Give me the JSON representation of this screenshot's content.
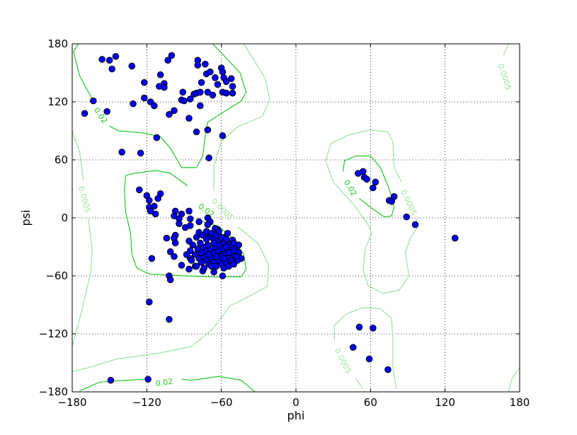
{
  "chart_data": {
    "type": "scatter",
    "title": "",
    "xlabel": "phi",
    "ylabel": "psi",
    "xlim": [
      -180,
      180
    ],
    "ylim": [
      -180,
      180
    ],
    "xticks": [
      "−180",
      "−120",
      "−60",
      "0",
      "60",
      "120",
      "180"
    ],
    "yticks": [
      "−180",
      "−120",
      "−60",
      "0",
      "60",
      "120",
      "180"
    ],
    "xtick_values": [
      -180,
      -120,
      -60,
      0,
      60,
      120,
      180
    ],
    "ytick_values": [
      -180,
      -120,
      -60,
      0,
      60,
      120,
      180
    ],
    "grid": true,
    "grid_style": "dotted",
    "colors": {
      "points": "#0000ff",
      "point_edge": "#000000",
      "contour_high": "#22c722",
      "contour_low": "#9be39b"
    },
    "points": [
      [
        -156,
        164
      ],
      [
        -150,
        163
      ],
      [
        -145,
        167
      ],
      [
        -148,
        154
      ],
      [
        -132,
        157
      ],
      [
        -122,
        140
      ],
      [
        -109,
        148
      ],
      [
        -103,
        163
      ],
      [
        -100,
        168
      ],
      [
        -110,
        136
      ],
      [
        -106,
        139
      ],
      [
        -106,
        135
      ],
      [
        -122,
        124
      ],
      [
        -163,
        121
      ],
      [
        -170,
        108
      ],
      [
        -152,
        110
      ],
      [
        -131,
        118
      ],
      [
        -117,
        120
      ],
      [
        -114,
        116
      ],
      [
        -102,
        107
      ],
      [
        -98,
        111
      ],
      [
        -86,
        103
      ],
      [
        -112,
        83
      ],
      [
        -140,
        68
      ],
      [
        -125,
        67
      ],
      [
        -80,
        89
      ],
      [
        -71,
        91
      ],
      [
        -70,
        62
      ],
      [
        -59,
        85
      ],
      [
        -79,
        163
      ],
      [
        -79,
        158
      ],
      [
        -73,
        159
      ],
      [
        -77,
        116
      ],
      [
        -91,
        130
      ],
      [
        -92,
        122
      ],
      [
        -90,
        121
      ],
      [
        -85,
        123
      ],
      [
        -82,
        128
      ],
      [
        -80,
        129
      ],
      [
        -77,
        130
      ],
      [
        -76,
        140
      ],
      [
        -72,
        149
      ],
      [
        -69,
        151
      ],
      [
        -65,
        145
      ],
      [
        -63,
        138
      ],
      [
        -71,
        130
      ],
      [
        -67,
        127
      ],
      [
        -60,
        155
      ],
      [
        -59,
        151
      ],
      [
        -58,
        145
      ],
      [
        -56,
        141
      ],
      [
        -52,
        144
      ],
      [
        -51,
        136
      ],
      [
        -59,
        130
      ],
      [
        -56,
        129
      ],
      [
        -51,
        129
      ],
      [
        -126,
        29
      ],
      [
        -120,
        23
      ],
      [
        -109,
        25
      ],
      [
        -111,
        20
      ],
      [
        -118,
        18
      ],
      [
        -114,
        12
      ],
      [
        -118,
        11
      ],
      [
        -117,
        7
      ],
      [
        -113,
        4
      ],
      [
        -97,
        7
      ],
      [
        -98,
        2
      ],
      [
        -92,
        4
      ],
      [
        -86,
        7
      ],
      [
        -94,
        -1
      ],
      [
        -94,
        -6
      ],
      [
        -89,
        -10
      ],
      [
        -85,
        -8
      ],
      [
        -85,
        -1
      ],
      [
        -78,
        -4
      ],
      [
        -71,
        0
      ],
      [
        -69,
        -4
      ],
      [
        -71,
        -7
      ],
      [
        -104,
        -21
      ],
      [
        -97,
        -18
      ],
      [
        -98,
        -21
      ],
      [
        -97,
        -26
      ],
      [
        -101,
        -35
      ],
      [
        -98,
        -40
      ],
      [
        -116,
        -42
      ],
      [
        -92,
        -49
      ],
      [
        -85,
        -42
      ],
      [
        -86,
        -53
      ],
      [
        -81,
        -50
      ],
      [
        -102,
        -60
      ],
      [
        -101,
        -64
      ],
      [
        -59,
        -60
      ],
      [
        -75,
        -55
      ],
      [
        -57,
        -20
      ],
      [
        -51,
        -23
      ],
      [
        -65,
        -11
      ],
      [
        -63,
        -12
      ],
      [
        -78,
        -15
      ],
      [
        -75,
        -18
      ],
      [
        -72,
        -14
      ],
      [
        -70,
        -20
      ],
      [
        -68,
        -16
      ],
      [
        -66,
        -22
      ],
      [
        -64,
        -18
      ],
      [
        -62,
        -24
      ],
      [
        -60,
        -20
      ],
      [
        -58,
        -26
      ],
      [
        -56,
        -22
      ],
      [
        -54,
        -28
      ],
      [
        -52,
        -30
      ],
      [
        -50,
        -26
      ],
      [
        -48,
        -32
      ],
      [
        -46,
        -36
      ],
      [
        -44,
        -42
      ],
      [
        -47,
        -44
      ],
      [
        -50,
        -38
      ],
      [
        -53,
        -34
      ],
      [
        -55,
        -40
      ],
      [
        -57,
        -36
      ],
      [
        -59,
        -32
      ],
      [
        -61,
        -38
      ],
      [
        -63,
        -34
      ],
      [
        -65,
        -30
      ],
      [
        -67,
        -36
      ],
      [
        -69,
        -32
      ],
      [
        -71,
        -28
      ],
      [
        -73,
        -34
      ],
      [
        -75,
        -30
      ],
      [
        -77,
        -26
      ],
      [
        -79,
        -32
      ],
      [
        -81,
        -38
      ],
      [
        -78,
        -42
      ],
      [
        -76,
        -46
      ],
      [
        -74,
        -40
      ],
      [
        -72,
        -44
      ],
      [
        -70,
        -48
      ],
      [
        -68,
        -42
      ],
      [
        -66,
        -46
      ],
      [
        -64,
        -50
      ],
      [
        -62,
        -44
      ],
      [
        -60,
        -48
      ],
      [
        -58,
        -52
      ],
      [
        -56,
        -46
      ],
      [
        -54,
        -50
      ],
      [
        -52,
        -44
      ],
      [
        -50,
        -48
      ],
      [
        -48,
        -40
      ],
      [
        -83,
        -28
      ],
      [
        -85,
        -34
      ],
      [
        -80,
        -50
      ],
      [
        -74,
        -52
      ],
      [
        -66,
        -56
      ],
      [
        -60,
        -40
      ],
      [
        -62,
        -28
      ],
      [
        -66,
        -26
      ],
      [
        -70,
        -38
      ],
      [
        -58,
        -42
      ],
      [
        -54,
        -36
      ],
      [
        -72,
        -22
      ],
      [
        -76,
        -36
      ],
      [
        -68,
        -50
      ],
      [
        -64,
        -40
      ],
      [
        -56,
        -30
      ],
      [
        -50,
        -34
      ],
      [
        -46,
        -28
      ],
      [
        -80,
        -20
      ],
      [
        -84,
        -44
      ],
      [
        -88,
        -38
      ],
      [
        -86,
        -24
      ],
      [
        -62,
        -14
      ],
      [
        -55,
        -16
      ],
      [
        50,
        46
      ],
      [
        54,
        48
      ],
      [
        55,
        42
      ],
      [
        57,
        40
      ],
      [
        62,
        31
      ],
      [
        64,
        37
      ],
      [
        75,
        18
      ],
      [
        79,
        22
      ],
      [
        77,
        17
      ],
      [
        89,
        1
      ],
      [
        96,
        -7
      ],
      [
        128,
        -21
      ],
      [
        51,
        -113
      ],
      [
        62,
        -114
      ],
      [
        46,
        -134
      ],
      [
        59,
        -146
      ],
      [
        74,
        -157
      ],
      [
        -149,
        -168
      ],
      [
        -119,
        -167
      ],
      [
        -118,
        -87
      ],
      [
        -102,
        -105
      ]
    ],
    "contours": [
      {
        "level": "0.02",
        "tone": "high",
        "path": [
          [
            -175,
            180
          ],
          [
            -179,
            172
          ],
          [
            -174,
            147
          ],
          [
            -163,
            121
          ]
        ]
      },
      {
        "level": "0.02",
        "tone": "high",
        "path": [
          [
            -150,
            95
          ],
          [
            -143,
            90
          ],
          [
            -124,
            88
          ],
          [
            -109,
            84
          ],
          [
            -101,
            72
          ],
          [
            -92,
            52
          ],
          [
            -80,
            52
          ],
          [
            -75,
            64
          ],
          [
            -73,
            84
          ],
          [
            -71,
            99
          ],
          [
            -60,
            108
          ],
          [
            -44,
            121
          ],
          [
            -40,
            130
          ],
          [
            -45,
            150
          ],
          [
            -58,
            168
          ],
          [
            -67,
            180
          ]
        ]
      },
      {
        "level": "0.02",
        "tone": "high",
        "path": [
          [
            -80,
            -2
          ],
          [
            -62,
            -9
          ],
          [
            -50,
            -22
          ],
          [
            -42,
            -38
          ],
          [
            -40,
            -53
          ],
          [
            -44,
            -61
          ],
          [
            -67,
            -61
          ],
          [
            -90,
            -60
          ],
          [
            -118,
            -58
          ],
          [
            -128,
            -52
          ],
          [
            -132,
            -38
          ],
          [
            -133,
            -16
          ],
          [
            -137,
            6
          ],
          [
            -138,
            28
          ],
          [
            -137,
            44
          ],
          [
            -130,
            46
          ],
          [
            -113,
            49
          ],
          [
            -101,
            46
          ],
          [
            -87,
            33
          ]
        ]
      },
      {
        "level": "0.02",
        "tone": "high",
        "path": [
          [
            38,
            48
          ],
          [
            39,
            59
          ],
          [
            48,
            64
          ],
          [
            60,
            64
          ],
          [
            68,
            52
          ],
          [
            75,
            30
          ],
          [
            79,
            11
          ],
          [
            77,
            2
          ],
          [
            71,
            1
          ],
          [
            60,
            11
          ],
          [
            51,
            20
          ]
        ]
      },
      {
        "level": "0.02",
        "tone": "high",
        "path": [
          [
            -174,
            -179
          ],
          [
            -158,
            -170
          ],
          [
            -136,
            -168
          ],
          [
            -122,
            -167
          ]
        ]
      },
      {
        "level": "0.02",
        "tone": "high",
        "path": [
          [
            -92,
            -167
          ],
          [
            -84,
            -168
          ],
          [
            -62,
            -164
          ],
          [
            -44,
            -168
          ],
          [
            -33,
            -180
          ]
        ]
      },
      {
        "level": "0.0005",
        "tone": "low",
        "path": [
          [
            -42,
            180
          ],
          [
            -25,
            145
          ],
          [
            -21,
            123
          ],
          [
            -27,
            105
          ],
          [
            -47,
            94
          ],
          [
            -60,
            79
          ],
          [
            -66,
            53
          ],
          [
            -66,
            28
          ]
        ]
      },
      {
        "level": "0.0005",
        "tone": "low",
        "path": [
          [
            -47,
            -9
          ],
          [
            -30,
            -27
          ],
          [
            -22,
            -49
          ],
          [
            -23,
            -71
          ],
          [
            -36,
            -80
          ],
          [
            -53,
            -91
          ],
          [
            -67,
            -115
          ],
          [
            -84,
            -133
          ],
          [
            -110,
            -140
          ],
          [
            -144,
            -146
          ],
          [
            -167,
            -155
          ],
          [
            -180,
            -159
          ]
        ]
      },
      {
        "level": "0.0005",
        "tone": "low",
        "path": [
          [
            -180,
            90
          ],
          [
            -174,
            68
          ],
          [
            -171,
            39
          ]
        ]
      },
      {
        "level": "0.0005",
        "tone": "low",
        "path": [
          [
            -167,
            -1
          ],
          [
            -164,
            -31
          ],
          [
            -165,
            -56
          ],
          [
            -171,
            -89
          ],
          [
            -177,
            -119
          ],
          [
            -180,
            -133
          ]
        ]
      },
      {
        "level": "0.0005",
        "tone": "low",
        "path": [
          [
            85,
            37
          ],
          [
            79,
            52
          ],
          [
            78,
            79
          ],
          [
            74,
            89
          ],
          [
            60,
            91
          ],
          [
            43,
            86
          ],
          [
            28,
            77
          ],
          [
            24,
            59
          ],
          [
            30,
            37
          ],
          [
            47,
            13
          ],
          [
            58,
            -7
          ],
          [
            61,
            -16
          ],
          [
            56,
            -31
          ],
          [
            54,
            -53
          ],
          [
            58,
            -70
          ],
          [
            70,
            -78
          ],
          [
            83,
            -75
          ],
          [
            91,
            -60
          ],
          [
            88,
            -36
          ],
          [
            92,
            -21
          ],
          [
            97,
            -11
          ],
          [
            97,
            -1
          ]
        ]
      },
      {
        "level": "0.0005",
        "tone": "low",
        "path": [
          [
            31,
            -127
          ],
          [
            31,
            -111
          ],
          [
            41,
            -99
          ],
          [
            54,
            -93
          ],
          [
            68,
            -94
          ],
          [
            77,
            -104
          ],
          [
            78,
            -126
          ],
          [
            78,
            -155
          ],
          [
            81,
            -177
          ]
        ]
      },
      {
        "level": "0.0005",
        "tone": "low",
        "path": [
          [
            48,
            -166
          ],
          [
            54,
            -177
          ]
        ]
      },
      {
        "level": "0.0005",
        "tone": "low",
        "path": [
          [
            171,
            180
          ],
          [
            167,
            168
          ]
        ]
      },
      {
        "level": "0.0005",
        "tone": "low",
        "path": [
          [
            171,
            -180
          ],
          [
            174,
            -166
          ],
          [
            180,
            -155
          ]
        ]
      }
    ],
    "contour_labels": [
      {
        "text": "0.02",
        "tone": "high",
        "at": [
          -157,
          106
        ],
        "angle": 55
      },
      {
        "text": "0.02",
        "tone": "high",
        "at": [
          -72,
          8
        ],
        "angle": 35
      },
      {
        "text": "0.02",
        "tone": "high",
        "at": [
          44,
          31
        ],
        "angle": 60
      },
      {
        "text": "0.02",
        "tone": "high",
        "at": [
          -106,
          -170
        ],
        "angle": -8
      },
      {
        "text": "0.0005",
        "tone": "low",
        "at": [
          -170,
          19
        ],
        "angle": 75
      },
      {
        "text": "0.0005",
        "tone": "low",
        "at": [
          -59,
          9
        ],
        "angle": 45
      },
      {
        "text": "0.0005",
        "tone": "low",
        "at": [
          91,
          16
        ],
        "angle": 65
      },
      {
        "text": "0.0005",
        "tone": "low",
        "at": [
          38,
          -148
        ],
        "angle": 62
      },
      {
        "text": "0.0005",
        "tone": "low",
        "at": [
          168,
          146
        ],
        "angle": 72
      }
    ]
  }
}
